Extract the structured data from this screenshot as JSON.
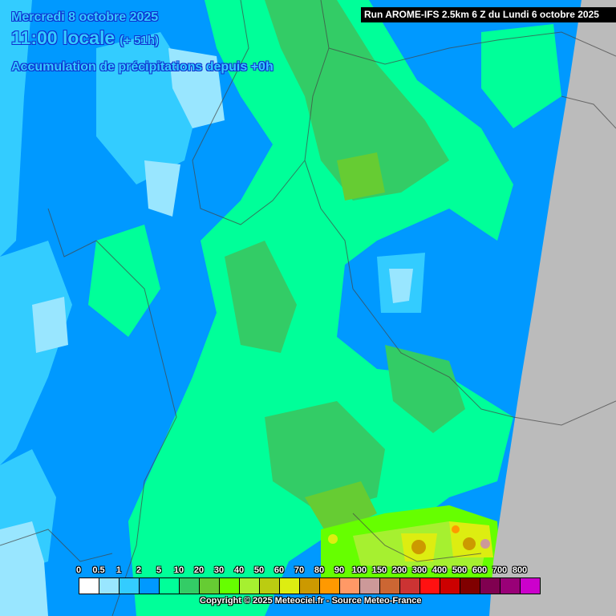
{
  "header": {
    "date": "Mercredi 8 octobre 2025",
    "time": "11:00 locale",
    "offset": "(+ 51h)",
    "parameter": "Accumulation de précipitations depuis +0h",
    "run": "Run AROME-IFS 2.5km 6 Z du Lundi 6 octobre 2025"
  },
  "legend": {
    "labels": [
      "0",
      "0.5",
      "1",
      "2",
      "5",
      "10",
      "20",
      "30",
      "40",
      "50",
      "60",
      "70",
      "80",
      "90",
      "100",
      "150",
      "200",
      "300",
      "400",
      "500",
      "600",
      "700",
      "800"
    ],
    "colors": [
      "#ffffff",
      "#99e6ff",
      "#33ccff",
      "#0099ff",
      "#00ff99",
      "#33cc66",
      "#66cc33",
      "#66ff00",
      "#a6f030",
      "#bbcc11",
      "#dded11",
      "#cc9900",
      "#ff9900",
      "#ff9966",
      "#cc9999",
      "#cc6633",
      "#cc3333",
      "#ff1111",
      "#cc0000",
      "#800000",
      "#800050",
      "#990077",
      "#cc00cc"
    ]
  },
  "copyright": "Copyright © 2025 Meteociel.fr - Source Meteo-France"
}
